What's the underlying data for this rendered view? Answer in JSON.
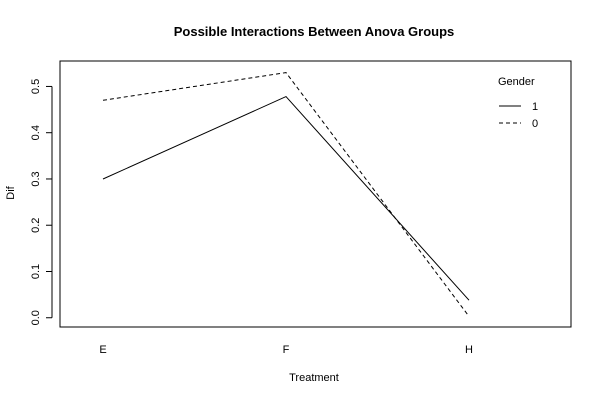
{
  "chart_data": {
    "type": "line",
    "title": "Possible Interactions Between Anova Groups",
    "xlabel": "Treatment",
    "ylabel": "Dif",
    "categories": [
      "E",
      "F",
      "H"
    ],
    "ylim": [
      -0.02,
      0.555
    ],
    "yticks": [
      0.0,
      0.1,
      0.2,
      0.3,
      0.4,
      0.5
    ],
    "ytick_labels": [
      "0.0",
      "0.1",
      "0.2",
      "0.3",
      "0.4",
      "0.5"
    ],
    "legend": {
      "title": "Gender",
      "position": "top-right"
    },
    "series": [
      {
        "name": "1",
        "values": [
          0.3,
          0.478,
          0.038
        ],
        "line_style": "solid"
      },
      {
        "name": "0",
        "values": [
          0.47,
          0.53,
          0.003
        ],
        "line_style": "dashed"
      }
    ],
    "grid": false,
    "colors": {
      "line": "#000000",
      "background": "#ffffff"
    }
  }
}
